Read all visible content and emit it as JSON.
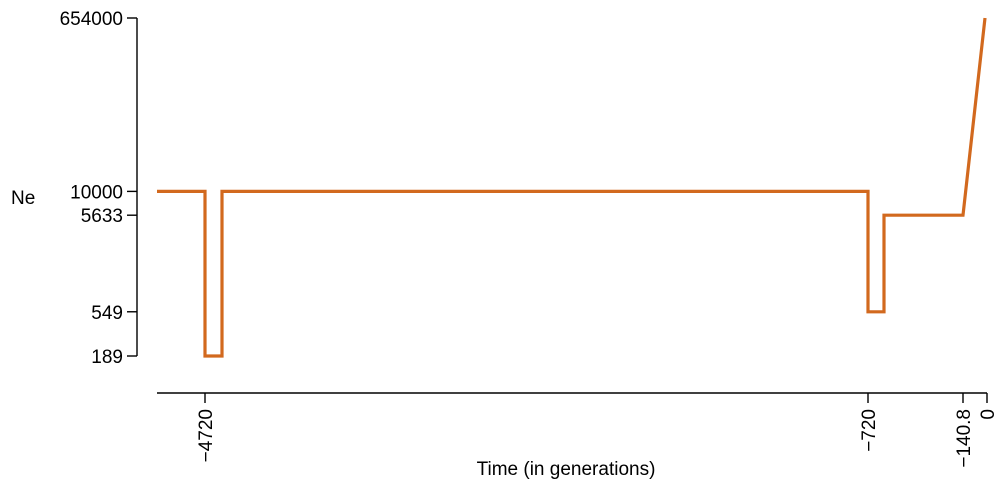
{
  "chart_data": {
    "type": "line",
    "title": "",
    "xlabel": "Time (in generations)",
    "ylabel": "Ne",
    "x_ticks": [
      {
        "value": -4720,
        "label": "−4720"
      },
      {
        "value": -720,
        "label": "−720"
      },
      {
        "value": -140.8,
        "label": "−140.8"
      },
      {
        "value": 0,
        "label": "0"
      }
    ],
    "y_ticks": [
      {
        "value": 189,
        "label": "189"
      },
      {
        "value": 549,
        "label": "549"
      },
      {
        "value": 5633,
        "label": "5633"
      },
      {
        "value": 10000,
        "label": "10000"
      },
      {
        "value": 654000,
        "label": "654000"
      }
    ],
    "y_scale": "log",
    "xlim": [
      -5000,
      0
    ],
    "ylim": [
      189,
      654000
    ],
    "grid": false,
    "series": [
      {
        "color": "#d2691e",
        "x": [
          -5000,
          -4720,
          -4720,
          -4620,
          -4620,
          -720,
          -720,
          -620,
          -620,
          -140.8,
          -10
        ],
        "y": [
          10000,
          10000,
          189,
          189,
          10000,
          10000,
          549,
          549,
          5633,
          5633,
          654000
        ]
      }
    ]
  }
}
